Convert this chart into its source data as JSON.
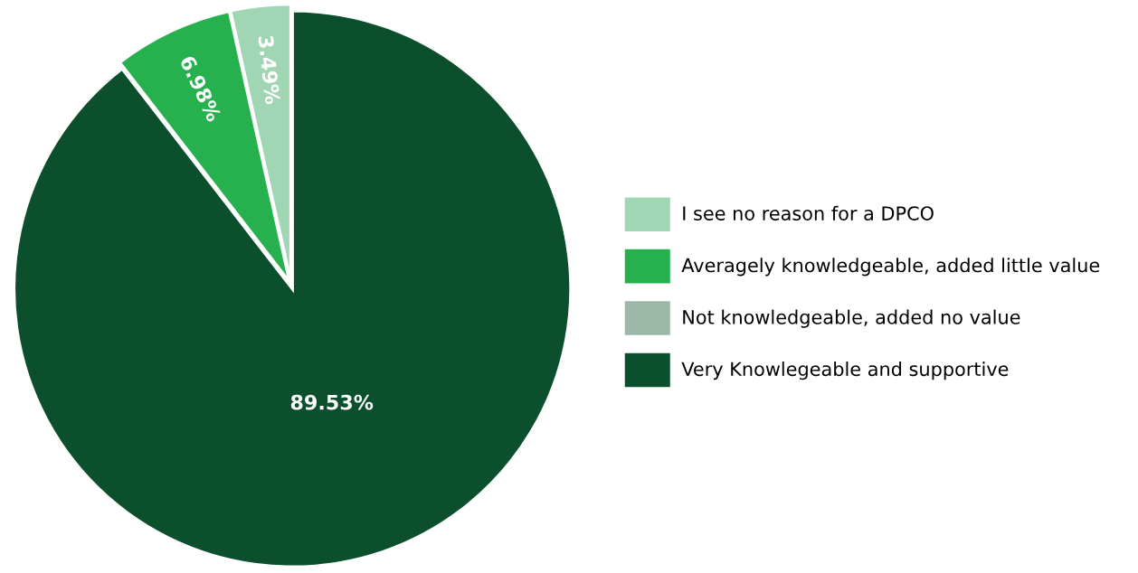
{
  "chart_data": {
    "type": "pie",
    "categories": [
      "I see no reason for a DPCO",
      "Averagely knowledgeable, added little value",
      "Not knowledgeable, added no value",
      "Very Knowlegeable and supportive"
    ],
    "values": [
      3.49,
      6.98,
      0,
      89.53
    ],
    "colors": [
      "#a0d6b4",
      "#27b14e",
      "#9bb8a9",
      "#0b4f2c"
    ],
    "value_labels": [
      "3.49%",
      "6.98%",
      null,
      "89.53%"
    ],
    "legend": "right"
  }
}
